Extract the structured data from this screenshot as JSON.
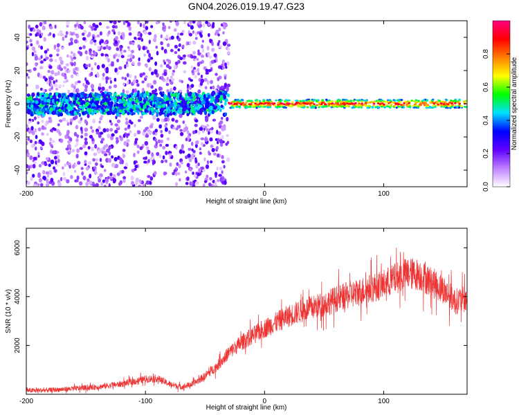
{
  "figure": {
    "title": "GN04.2026.019.19.47.G23"
  },
  "chart_data": [
    {
      "type": "heatmap",
      "xlabel": "Height of straight line (km)",
      "ylabel": "Frequency (Hz)",
      "xlim": [
        -200,
        170
      ],
      "ylim": [
        -50,
        50
      ],
      "xticks": [
        -200,
        -100,
        0,
        100
      ],
      "yticks": [
        -40,
        -20,
        0,
        20,
        40
      ],
      "grid": false,
      "ridge": {
        "x_from": -30,
        "x_to": 170,
        "frequency": 0,
        "amplitude": 1.0
      },
      "noisy_region": {
        "x_from": -200,
        "x_to": -30,
        "frequency": 0,
        "amplitude": 0.4
      },
      "colorbar": {
        "label": "Normalized spectral amplitude",
        "range": [
          0,
          1
        ],
        "ticks": [
          0.0,
          0.2,
          0.4,
          0.6,
          0.8
        ],
        "colors": [
          "#ffffff",
          "#c080ff",
          "#6000ff",
          "#0000ff",
          "#00e0ff",
          "#00ff00",
          "#ffff00",
          "#ff8000",
          "#ff0000",
          "#ff0080"
        ]
      }
    },
    {
      "type": "line",
      "xlabel": "Height of straight line (km)",
      "ylabel": "SNR (10 * v/v)",
      "xlim": [
        -200,
        170
      ],
      "ylim": [
        0,
        6800
      ],
      "xticks": [
        -200,
        -100,
        0,
        100
      ],
      "yticks": [
        2000,
        4000,
        6000
      ],
      "grid": false,
      "color": "#ee3333",
      "x": [
        -200,
        -180,
        -160,
        -140,
        -120,
        -100,
        -90,
        -80,
        -70,
        -60,
        -50,
        -40,
        -30,
        -20,
        -10,
        0,
        10,
        20,
        30,
        40,
        50,
        60,
        70,
        80,
        90,
        100,
        110,
        120,
        130,
        140,
        150,
        160,
        170
      ],
      "y": [
        150,
        170,
        230,
        300,
        420,
        620,
        650,
        420,
        300,
        420,
        750,
        1150,
        1700,
        2100,
        2400,
        2700,
        2950,
        3200,
        3400,
        3550,
        3700,
        3900,
        4050,
        4200,
        4350,
        4500,
        4750,
        4950,
        4900,
        4600,
        4300,
        3800,
        3900
      ]
    }
  ]
}
